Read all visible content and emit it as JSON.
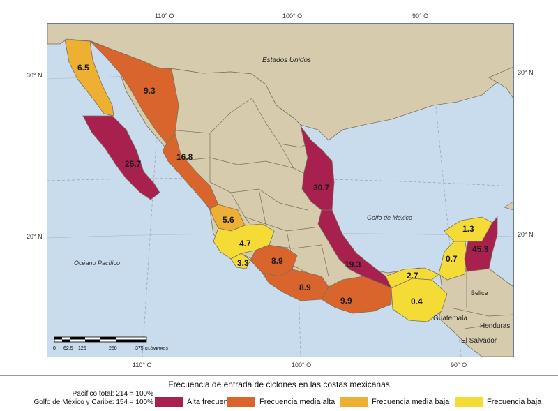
{
  "coords": {
    "top": [
      "110° O",
      "100° O",
      "90° O"
    ],
    "bottom": [
      "110° O",
      "100° O",
      "90° O"
    ],
    "left": [
      "30° N",
      "20° N"
    ],
    "right": [
      "30° N",
      "20° N"
    ]
  },
  "place_labels": {
    "usa": "Estados Unidos",
    "gulf": "Golfo de México",
    "pacific": "Océano Pacífico",
    "belize": "Belice",
    "guatemala": "Guatemala",
    "honduras": "Honduras",
    "salvador": "El Salvador"
  },
  "values": {
    "baja_norte": "6.5",
    "sonora": "9.3",
    "baja_sur": "25.7",
    "sinaloa": "16.8",
    "tamaulipas": "30.7",
    "nayarit": "5.6",
    "jalisco": "4.7",
    "colima": "3.3",
    "michoacan": "8.9",
    "guerrero": "8.9",
    "veracruz": "19.3",
    "oaxaca": "9.9",
    "tabasco": "2.7",
    "chiapas": "0.4",
    "yucatan": "1.3",
    "campeche": "0.7",
    "quintana_roo": "45.3"
  },
  "scale": {
    "ticks": [
      "0",
      "62.5",
      "125",
      "250",
      "375"
    ],
    "unit": "KILÓMETROS"
  },
  "legend": {
    "title": "Frecuencia de entrada de ciclones en las costas mexicanas",
    "pacific_total": "Pacífico total: 214 = 100%",
    "gulf_total": "Golfo de México y Caribe: 154 = 100%",
    "items": [
      {
        "label": "Alta frecuencia",
        "color": "#a8204e"
      },
      {
        "label": "Frecuencia media alta",
        "color": "#d9652c"
      },
      {
        "label": "Frecuencia media baja",
        "color": "#eeb033"
      },
      {
        "label": "Frecuencia baja",
        "color": "#f4db36"
      }
    ]
  },
  "colors": {
    "ocean": "#c9dcee",
    "land": "#d6cbac",
    "alta": "#a8204e",
    "media_alta": "#d9652c",
    "media_baja": "#eeb033",
    "baja": "#f4db36"
  }
}
